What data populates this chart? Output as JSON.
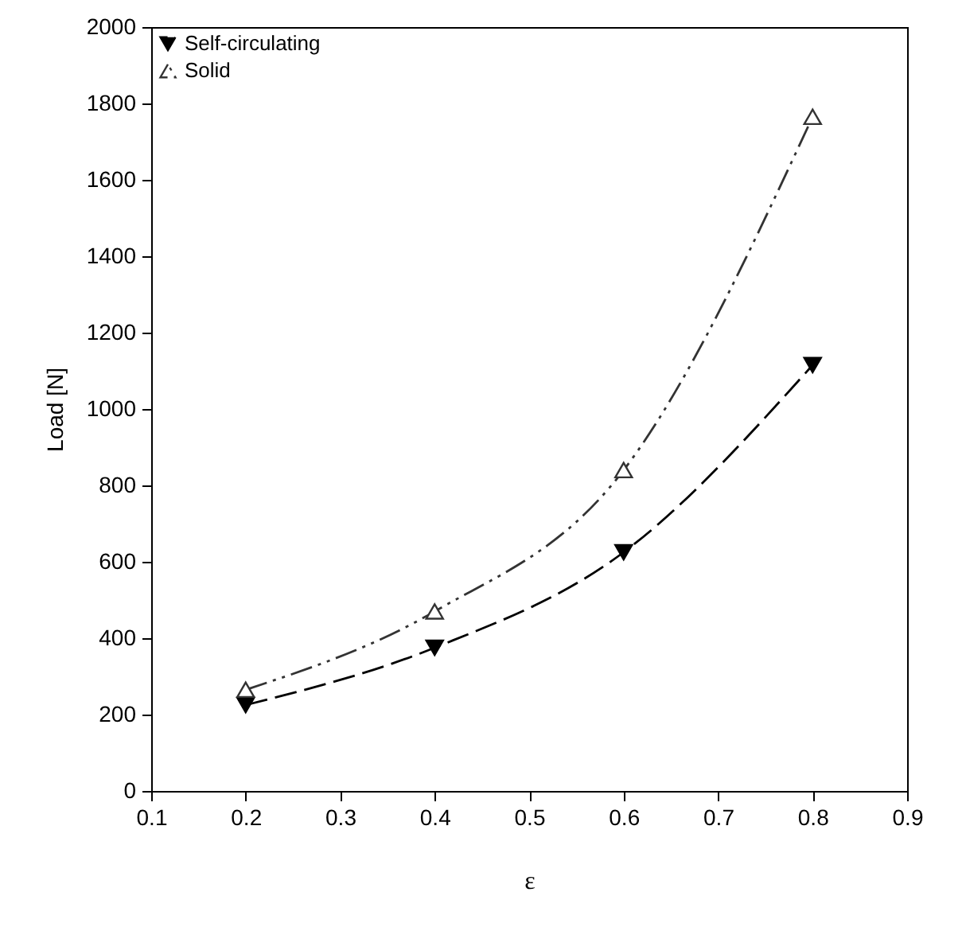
{
  "chart_data": {
    "type": "line",
    "xlabel": "ε",
    "ylabel": "Load [N]",
    "x": [
      0.2,
      0.4,
      0.6,
      0.8
    ],
    "xlim": [
      0.1,
      0.9
    ],
    "xticks": [
      0.1,
      0.2,
      0.3,
      0.4,
      0.5,
      0.6,
      0.7,
      0.8,
      0.9
    ],
    "ylim": [
      0,
      2000
    ],
    "yticks": [
      0,
      200,
      400,
      600,
      800,
      1000,
      1200,
      1400,
      1600,
      1800,
      2000
    ],
    "grid": false,
    "legend": "top left",
    "series": [
      {
        "name": "Self-circulating",
        "color": "#000000",
        "values": [
          225,
          375,
          625,
          1115
        ],
        "marker": "triangle-down",
        "line_style": "dashed"
      },
      {
        "name": "Solid",
        "color": "#333333",
        "values": [
          265,
          470,
          840,
          1765
        ],
        "marker": "triangle",
        "line_style": "dotted"
      }
    ]
  }
}
